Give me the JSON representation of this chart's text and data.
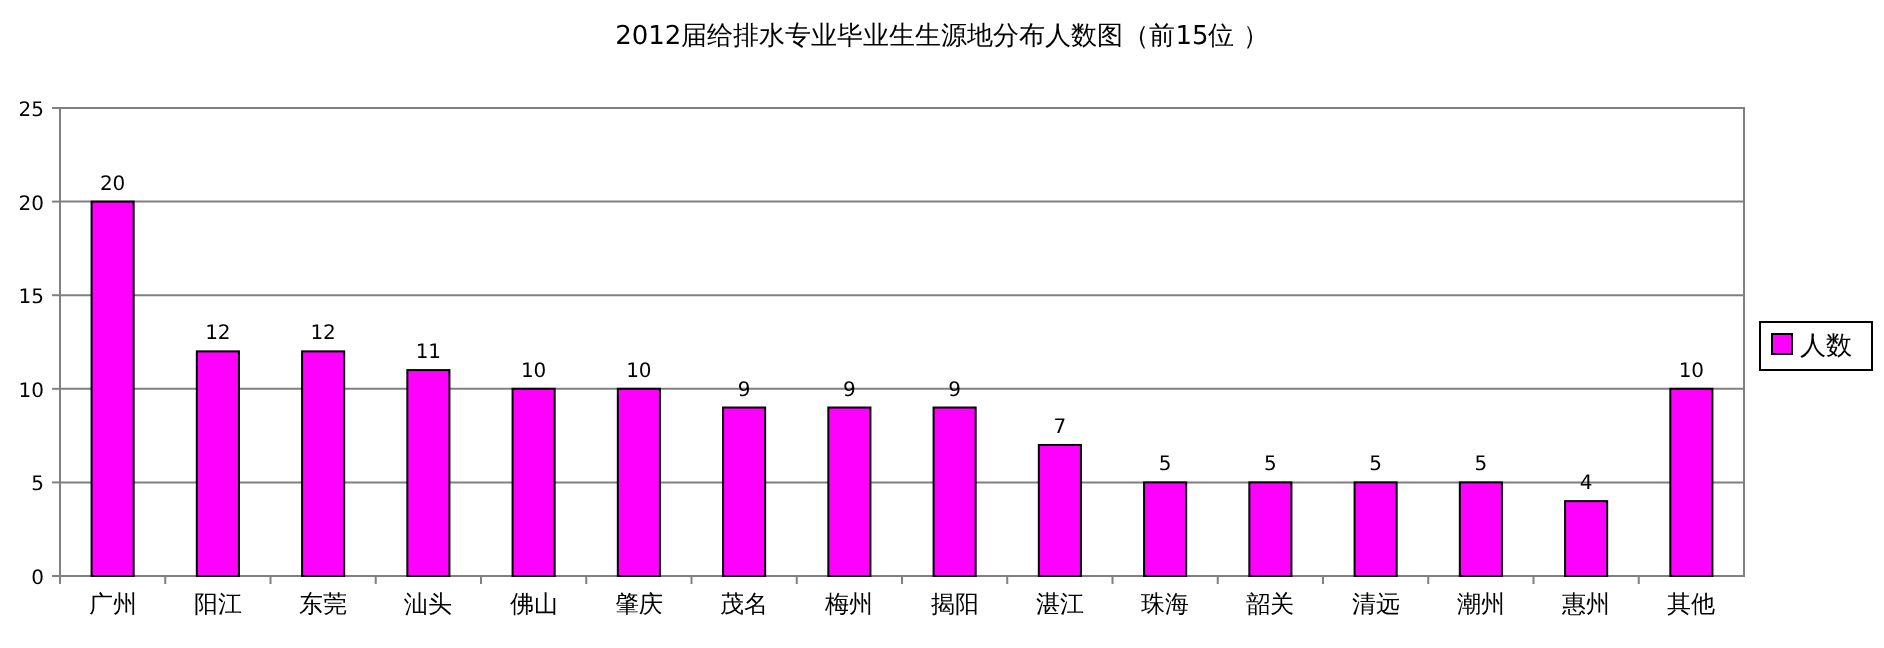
{
  "chart_data": {
    "type": "bar",
    "title": "2012届给排水专业毕业生生源地分布人数图（前15位 ）",
    "categories": [
      "广州",
      "阳江",
      "东莞",
      "汕头",
      "佛山",
      "肇庆",
      "茂名",
      "梅州",
      "揭阳",
      "湛江",
      "珠海",
      "韶关",
      "清远",
      "潮州",
      "惠州",
      "其他"
    ],
    "series": [
      {
        "name": "人数",
        "color": "#ff00ff",
        "values": [
          20,
          12,
          12,
          11,
          10,
          10,
          9,
          9,
          9,
          7,
          5,
          5,
          5,
          5,
          4,
          10
        ]
      }
    ],
    "ylim": [
      0,
      25
    ],
    "yticks": [
      0,
      5,
      10,
      15,
      20,
      25
    ],
    "grid": "y",
    "legend": "right",
    "data_labels": true
  }
}
